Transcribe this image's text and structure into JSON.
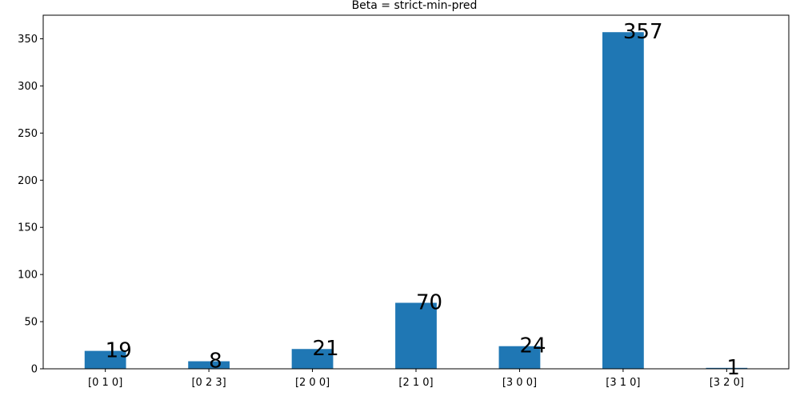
{
  "chart_data": {
    "type": "bar",
    "title": "Beta = strict-min-pred",
    "xlabel": "",
    "ylabel": "",
    "categories": [
      "[0 1 0]",
      "[0 2 3]",
      "[2 0 0]",
      "[2 1 0]",
      "[3 0 0]",
      "[3 1 0]",
      "[3 2 0]"
    ],
    "values": [
      19,
      8,
      21,
      70,
      24,
      357,
      1
    ],
    "data_labels": [
      "19",
      "8",
      "21",
      "70",
      "24",
      "357",
      "1"
    ],
    "ylim": [
      0,
      375
    ],
    "yticks": [
      0,
      50,
      100,
      150,
      200,
      250,
      300,
      350
    ],
    "grid": false,
    "legend": "none",
    "bar_color": "#1f77b4"
  }
}
